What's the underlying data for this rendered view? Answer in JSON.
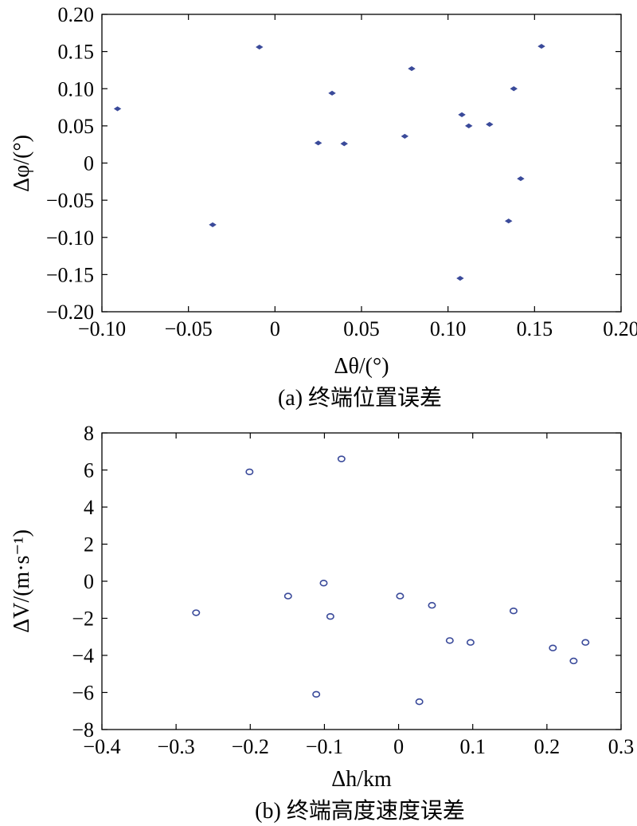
{
  "chart_data": [
    {
      "type": "scatter",
      "xlabel": "Δθ/(°)",
      "ylabel": "Δφ/(°)",
      "caption": "(a) 终端位置误差",
      "xlim": [
        -0.1,
        0.2
      ],
      "ylim": [
        -0.2,
        0.2
      ],
      "xticks": [
        -0.1,
        -0.05,
        0,
        0.05,
        0.1,
        0.15,
        0.2
      ],
      "xtick_labels": [
        "−0.10",
        "−0.05",
        "0",
        "0.05",
        "0.10",
        "0.15",
        "0.20"
      ],
      "yticks": [
        0.2,
        0.15,
        0.1,
        0.05,
        0,
        -0.05,
        -0.1,
        -0.15,
        -0.2
      ],
      "ytick_labels": [
        "0.20",
        "0.15",
        "0.10",
        "0.05",
        "0",
        "−0.05",
        "−0.10",
        "−0.15",
        "−0.20"
      ],
      "marker": "dot",
      "color": "#3a4a9a",
      "points": [
        {
          "x": -0.091,
          "y": 0.073
        },
        {
          "x": -0.036,
          "y": -0.083
        },
        {
          "x": -0.009,
          "y": 0.156
        },
        {
          "x": 0.025,
          "y": 0.027
        },
        {
          "x": 0.033,
          "y": 0.094
        },
        {
          "x": 0.04,
          "y": 0.026
        },
        {
          "x": 0.075,
          "y": 0.036
        },
        {
          "x": 0.079,
          "y": 0.127
        },
        {
          "x": 0.107,
          "y": -0.155
        },
        {
          "x": 0.108,
          "y": 0.065
        },
        {
          "x": 0.112,
          "y": 0.05
        },
        {
          "x": 0.124,
          "y": 0.052
        },
        {
          "x": 0.135,
          "y": -0.078
        },
        {
          "x": 0.138,
          "y": 0.1
        },
        {
          "x": 0.142,
          "y": -0.021
        },
        {
          "x": 0.154,
          "y": 0.157
        }
      ]
    },
    {
      "type": "scatter",
      "xlabel": "Δh/km",
      "ylabel": "ΔV/(m·s⁻¹)",
      "caption": "(b) 终端高度速度误差",
      "xlim": [
        -0.4,
        0.3
      ],
      "ylim": [
        -8,
        8
      ],
      "xticks": [
        -0.4,
        -0.3,
        -0.2,
        -0.1,
        0,
        0.1,
        0.2,
        0.3
      ],
      "xtick_labels": [
        "−0.4",
        "−0.3",
        "−0.2",
        "−0.1",
        "0",
        "0.1",
        "0.2",
        "0.3"
      ],
      "yticks": [
        8,
        6,
        4,
        2,
        0,
        -2,
        -4,
        -6,
        -8
      ],
      "ytick_labels": [
        "8",
        "6",
        "4",
        "2",
        "0",
        "−2",
        "−4",
        "−6",
        "−8"
      ],
      "marker": "circle",
      "color": "#3a4a9a",
      "points": [
        {
          "x": -0.273,
          "y": -1.7
        },
        {
          "x": -0.201,
          "y": 5.9
        },
        {
          "x": -0.149,
          "y": -0.8
        },
        {
          "x": -0.111,
          "y": -6.1
        },
        {
          "x": -0.101,
          "y": -0.1
        },
        {
          "x": -0.092,
          "y": -1.9
        },
        {
          "x": -0.077,
          "y": 6.6
        },
        {
          "x": 0.002,
          "y": -0.8
        },
        {
          "x": 0.028,
          "y": -6.5
        },
        {
          "x": 0.045,
          "y": -1.3
        },
        {
          "x": 0.069,
          "y": -3.2
        },
        {
          "x": 0.097,
          "y": -3.3
        },
        {
          "x": 0.155,
          "y": -1.6
        },
        {
          "x": 0.208,
          "y": -3.6
        },
        {
          "x": 0.236,
          "y": -4.3
        },
        {
          "x": 0.252,
          "y": -3.3
        }
      ]
    }
  ]
}
